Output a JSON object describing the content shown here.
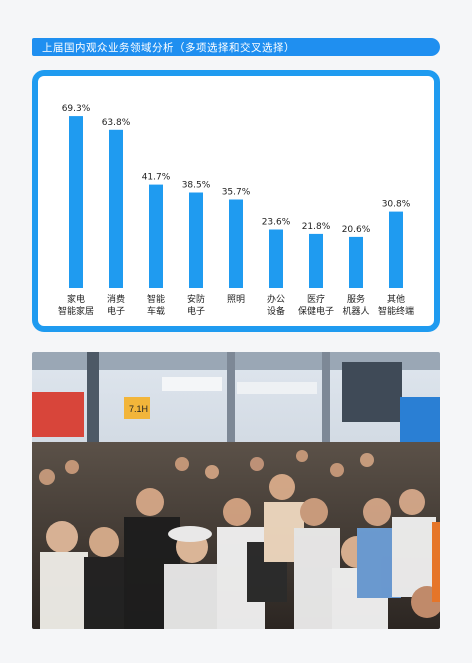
{
  "header": {
    "title": "上届国内观众业务领域分析（多项选择和交叉选择）"
  },
  "colors": {
    "accent": "#1f8ff0",
    "bar": "#1f9bf0",
    "border": "#1f9bf0"
  },
  "chart_data": {
    "type": "bar",
    "title": "",
    "xlabel": "",
    "ylabel": "",
    "ylim": [
      0,
      75
    ],
    "grid": false,
    "categories": [
      [
        "家电",
        "智能家居"
      ],
      [
        "消费",
        "电子"
      ],
      [
        "智能",
        "车载"
      ],
      [
        "安防",
        "电子"
      ],
      [
        "照明"
      ],
      [
        "办公",
        "设备"
      ],
      [
        "医疗",
        "保健电子"
      ],
      [
        "服务",
        "机器人"
      ],
      [
        "其他",
        "智能终端"
      ]
    ],
    "values": [
      69.3,
      63.8,
      41.7,
      38.5,
      35.7,
      23.6,
      21.8,
      20.6,
      30.8
    ],
    "value_labels": [
      "69.3%",
      "63.8%",
      "41.7%",
      "38.5%",
      "35.7%",
      "23.6%",
      "21.8%",
      "20.6%",
      "30.8%"
    ]
  },
  "photo": {
    "icon": "crowd-photo-icon",
    "sign": "7.1H"
  }
}
